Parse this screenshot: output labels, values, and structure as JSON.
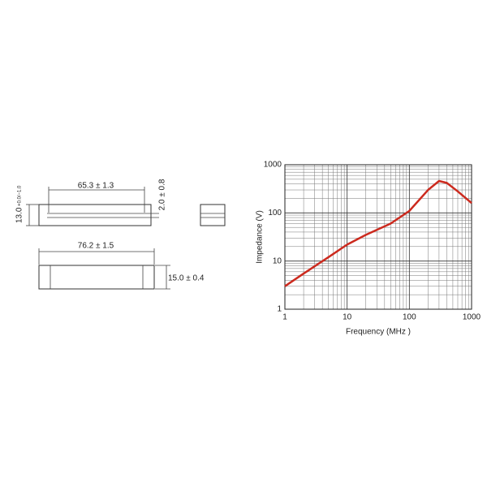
{
  "diagram": {
    "length_inner": "65.3 ± 1.3",
    "slot": "2.0 ± 0.8",
    "height": "13.0",
    "height_tolerance": "+0.0/−1.0",
    "length_outer": "76.2 ± 1.5",
    "width": "15.0 ± 0.4"
  },
  "chart_data": {
    "type": "line",
    "x_label": "Frequency (MHz )",
    "y_label": "Impedance (V)",
    "x": [
      1,
      2,
      5,
      10,
      20,
      50,
      100,
      200,
      300,
      400,
      600,
      1000
    ],
    "series": [
      {
        "name": "Impedance",
        "color": "#cc2a1e",
        "values": [
          3,
          5.5,
          12,
          22,
          35,
          60,
          110,
          300,
          460,
          420,
          280,
          160
        ]
      }
    ],
    "xlim": [
      1,
      1000
    ],
    "ylim": [
      1,
      1000
    ],
    "xticks": [
      1,
      10,
      100,
      1000
    ],
    "yticks": [
      1,
      10,
      100,
      1000
    ],
    "log_x": true,
    "log_y": true,
    "grid": true,
    "minor_grid": true
  }
}
